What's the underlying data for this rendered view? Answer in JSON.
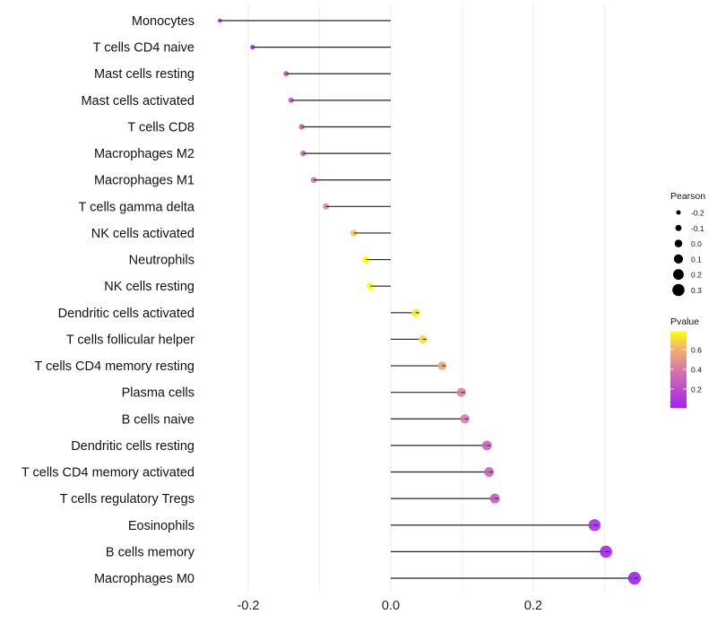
{
  "chart_data": {
    "type": "scatter",
    "subtype": "lollipop",
    "title": "",
    "xlabel": "",
    "ylabel": "",
    "xlim": [
      -0.25,
      0.35
    ],
    "x_ticks": [
      -0.2,
      0.0,
      0.2
    ],
    "x_tick_labels": [
      "-0.2",
      "0.0",
      "0.2"
    ],
    "grid": true,
    "categories": [
      "Monocytes",
      "T cells CD4 naive",
      "Mast cells resting",
      "Mast cells activated",
      "T cells CD8",
      "Macrophages M2",
      "Macrophages M1",
      "T cells gamma delta",
      "NK cells activated",
      "Neutrophils",
      "NK cells resting",
      "Dendritic cells activated",
      "T cells follicular helper",
      "T cells CD4 memory resting",
      "Plasma cells",
      "B cells naive",
      "Dendritic cells resting",
      "T cells CD4 memory activated",
      "T cells regulatory  Tregs",
      "Eosinophils",
      "B cells memory",
      "Macrophages M0"
    ],
    "pearson": [
      -0.24,
      -0.194,
      -0.147,
      -0.14,
      -0.125,
      -0.123,
      -0.108,
      -0.091,
      -0.052,
      -0.035,
      -0.029,
      0.035,
      0.045,
      0.072,
      0.099,
      0.104,
      0.135,
      0.138,
      0.146,
      0.286,
      0.302,
      0.342
    ],
    "pvalue": [
      0.02,
      0.05,
      0.25,
      0.26,
      0.29,
      0.3,
      0.38,
      0.47,
      0.66,
      0.77,
      0.78,
      0.75,
      0.7,
      0.56,
      0.42,
      0.4,
      0.31,
      0.29,
      0.27,
      0.05,
      0.03,
      0.01
    ],
    "legend_size": {
      "title": "Pearson",
      "values": [
        -0.2,
        -0.1,
        0.0,
        0.1,
        0.2,
        0.3
      ],
      "labels": [
        "-0.2",
        "-0.1",
        "0.0",
        "0.1",
        "0.2",
        "0.3"
      ],
      "placement": "right"
    },
    "legend_color": {
      "title": "Pvalue",
      "range": [
        0.01,
        0.78
      ],
      "ticks": [
        0.2,
        0.4,
        0.6
      ],
      "labels": [
        "0.2",
        "0.4",
        "0.6"
      ],
      "low_color": "#a020f0",
      "high_color": "#ffff00",
      "placement": "right"
    }
  }
}
